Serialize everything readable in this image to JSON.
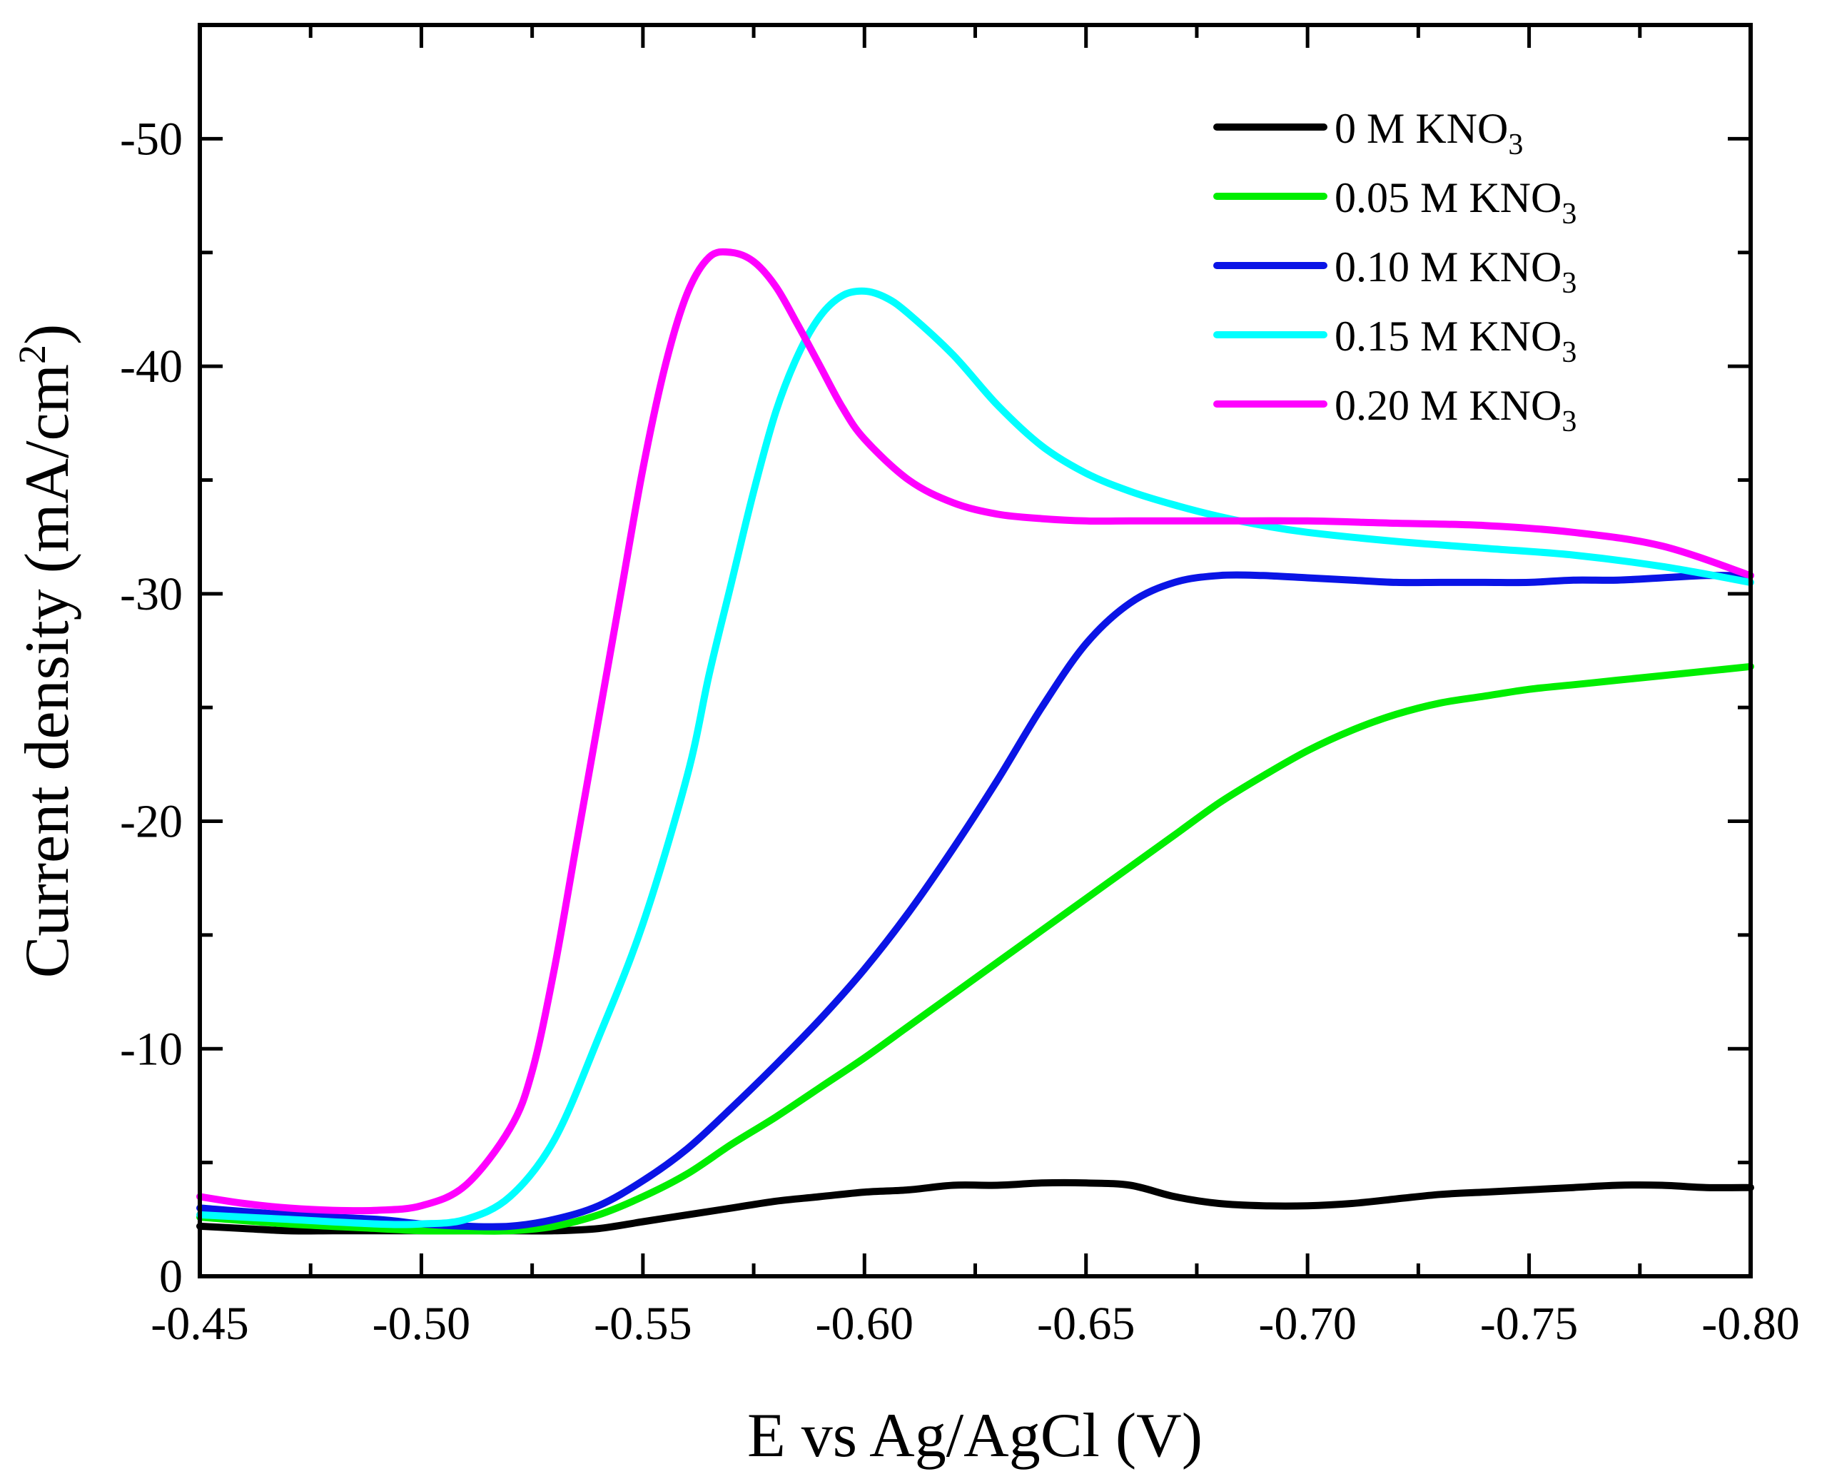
{
  "chart_data": {
    "type": "line",
    "title": "",
    "xlabel": "E vs Ag/AgCl  (V)",
    "ylabel": "Current density (mA/cm",
    "ylabel_sup": "2",
    "ylabel_close": ")",
    "xlim": [
      -0.45,
      -0.8
    ],
    "ylim": [
      0,
      -55
    ],
    "x_ticks": [
      -0.45,
      -0.5,
      -0.55,
      -0.6,
      -0.65,
      -0.7,
      -0.75,
      -0.8
    ],
    "x_tick_labels": [
      "-0.45",
      "-0.50",
      "-0.55",
      "-0.60",
      "-0.65",
      "-0.70",
      "-0.75",
      "-0.80"
    ],
    "y_ticks": [
      0,
      -10,
      -20,
      -30,
      -40,
      -50
    ],
    "y_tick_labels": [
      "0",
      "-10",
      "-20",
      "-30",
      "-40",
      "-50"
    ],
    "grid": false,
    "legend_position": "top-right",
    "series": [
      {
        "name": "0 M KNO",
        "sub": "3",
        "color": "#000000",
        "x": [
          -0.45,
          -0.46,
          -0.47,
          -0.48,
          -0.49,
          -0.5,
          -0.51,
          -0.52,
          -0.53,
          -0.54,
          -0.55,
          -0.56,
          -0.57,
          -0.58,
          -0.59,
          -0.6,
          -0.61,
          -0.62,
          -0.63,
          -0.64,
          -0.65,
          -0.66,
          -0.67,
          -0.68,
          -0.69,
          -0.7,
          -0.71,
          -0.72,
          -0.73,
          -0.74,
          -0.75,
          -0.76,
          -0.77,
          -0.78,
          -0.79,
          -0.8
        ],
        "y": [
          -2.2,
          -2.1,
          -2.0,
          -2.0,
          -2.0,
          -2.0,
          -2.0,
          -2.0,
          -2.0,
          -2.1,
          -2.4,
          -2.7,
          -3.0,
          -3.3,
          -3.5,
          -3.7,
          -3.8,
          -4.0,
          -4.0,
          -4.1,
          -4.1,
          -4.0,
          -3.5,
          -3.2,
          -3.1,
          -3.1,
          -3.2,
          -3.4,
          -3.6,
          -3.7,
          -3.8,
          -3.9,
          -4.0,
          -4.0,
          -3.9,
          -3.9
        ]
      },
      {
        "name": "0.05 M KNO",
        "sub": "3",
        "color": "#00ee00",
        "x": [
          -0.45,
          -0.47,
          -0.49,
          -0.5,
          -0.51,
          -0.52,
          -0.53,
          -0.54,
          -0.55,
          -0.56,
          -0.57,
          -0.58,
          -0.59,
          -0.6,
          -0.61,
          -0.62,
          -0.63,
          -0.64,
          -0.65,
          -0.66,
          -0.67,
          -0.68,
          -0.69,
          -0.7,
          -0.71,
          -0.72,
          -0.73,
          -0.74,
          -0.75,
          -0.76,
          -0.77,
          -0.78,
          -0.79,
          -0.8
        ],
        "y": [
          -2.6,
          -2.3,
          -2.1,
          -2.0,
          -2.0,
          -2.0,
          -2.2,
          -2.7,
          -3.5,
          -4.5,
          -5.8,
          -7.0,
          -8.3,
          -9.6,
          -11.0,
          -12.4,
          -13.8,
          -15.2,
          -16.6,
          -18.0,
          -19.4,
          -20.8,
          -22.0,
          -23.1,
          -24.0,
          -24.7,
          -25.2,
          -25.5,
          -25.8,
          -26.0,
          -26.2,
          -26.4,
          -26.6,
          -26.8
        ]
      },
      {
        "name": "0.10 M KNO",
        "sub": "3",
        "color": "#0a14e6",
        "x": [
          -0.45,
          -0.47,
          -0.49,
          -0.5,
          -0.51,
          -0.52,
          -0.53,
          -0.54,
          -0.55,
          -0.56,
          -0.57,
          -0.58,
          -0.59,
          -0.6,
          -0.61,
          -0.62,
          -0.63,
          -0.64,
          -0.65,
          -0.66,
          -0.67,
          -0.68,
          -0.69,
          -0.7,
          -0.71,
          -0.72,
          -0.73,
          -0.74,
          -0.75,
          -0.76,
          -0.77,
          -0.78,
          -0.79,
          -0.8
        ],
        "y": [
          -3.0,
          -2.7,
          -2.5,
          -2.3,
          -2.2,
          -2.2,
          -2.5,
          -3.1,
          -4.2,
          -5.6,
          -7.4,
          -9.3,
          -11.3,
          -13.5,
          -16.0,
          -18.8,
          -21.8,
          -25.0,
          -27.8,
          -29.6,
          -30.5,
          -30.8,
          -30.8,
          -30.7,
          -30.6,
          -30.5,
          -30.5,
          -30.5,
          -30.5,
          -30.6,
          -30.6,
          -30.7,
          -30.8,
          -30.8
        ]
      },
      {
        "name": "0.15 M KNO",
        "sub": "3",
        "color": "#00ffff",
        "x": [
          -0.45,
          -0.47,
          -0.49,
          -0.5,
          -0.51,
          -0.52,
          -0.53,
          -0.54,
          -0.55,
          -0.56,
          -0.565,
          -0.57,
          -0.575,
          -0.58,
          -0.585,
          -0.59,
          -0.595,
          -0.6,
          -0.605,
          -0.61,
          -0.62,
          -0.63,
          -0.64,
          -0.65,
          -0.66,
          -0.67,
          -0.68,
          -0.69,
          -0.7,
          -0.72,
          -0.74,
          -0.76,
          -0.78,
          -0.8
        ],
        "y": [
          -2.7,
          -2.5,
          -2.3,
          -2.3,
          -2.5,
          -3.5,
          -6.0,
          -10.5,
          -15.5,
          -22.0,
          -26.5,
          -30.5,
          -34.5,
          -38.0,
          -40.5,
          -42.2,
          -43.1,
          -43.3,
          -43.0,
          -42.3,
          -40.5,
          -38.3,
          -36.5,
          -35.3,
          -34.5,
          -33.9,
          -33.4,
          -33.0,
          -32.7,
          -32.3,
          -32.0,
          -31.7,
          -31.2,
          -30.5
        ]
      },
      {
        "name": "0.20 M KNO",
        "sub": "3",
        "color": "#ff00ff",
        "x": [
          -0.45,
          -0.46,
          -0.47,
          -0.48,
          -0.49,
          -0.5,
          -0.51,
          -0.52,
          -0.525,
          -0.53,
          -0.535,
          -0.54,
          -0.545,
          -0.55,
          -0.555,
          -0.56,
          -0.565,
          -0.57,
          -0.575,
          -0.58,
          -0.585,
          -0.59,
          -0.595,
          -0.6,
          -0.61,
          -0.62,
          -0.63,
          -0.64,
          -0.65,
          -0.66,
          -0.68,
          -0.7,
          -0.72,
          -0.74,
          -0.76,
          -0.78,
          -0.8
        ],
        "y": [
          -3.5,
          -3.2,
          -3.0,
          -2.9,
          -2.9,
          -3.1,
          -4.0,
          -6.5,
          -9.0,
          -13.5,
          -19.0,
          -24.5,
          -30.0,
          -35.5,
          -40.0,
          -43.2,
          -44.8,
          -45.0,
          -44.6,
          -43.5,
          -41.8,
          -40.0,
          -38.2,
          -36.8,
          -35.0,
          -34.0,
          -33.5,
          -33.3,
          -33.2,
          -33.2,
          -33.2,
          -33.2,
          -33.1,
          -33.0,
          -32.7,
          -32.1,
          -30.8
        ]
      }
    ]
  }
}
